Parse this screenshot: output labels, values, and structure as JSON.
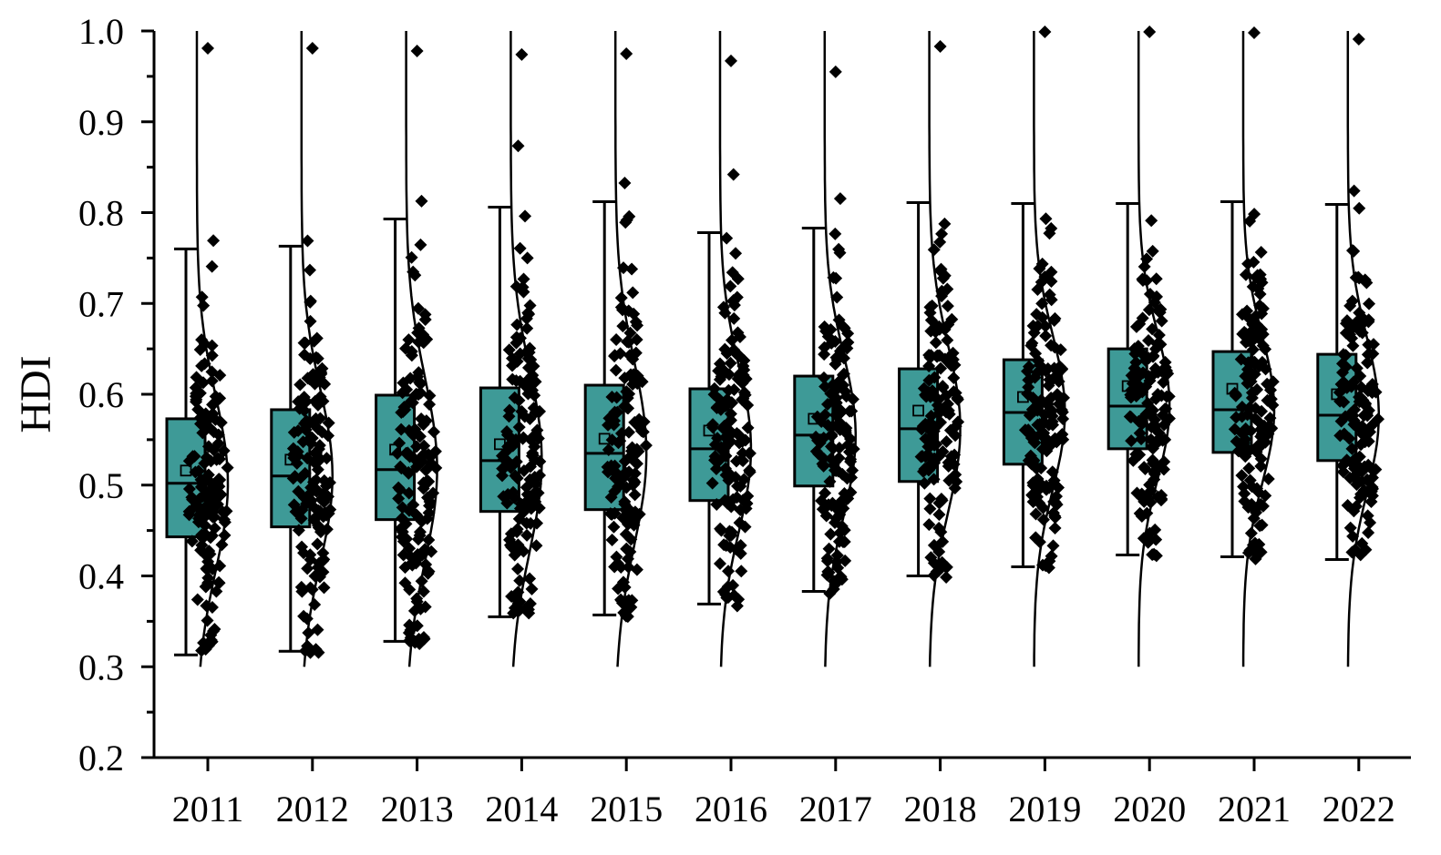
{
  "colors": {
    "box_fill": "#3E9A97",
    "stroke": "#000000",
    "background": "#ffffff"
  },
  "chart_data": {
    "type": "box",
    "ylabel": "HDI",
    "xlabel": "",
    "ylim": [
      0.2,
      1.0
    ],
    "y_ticks": [
      "0.2",
      "0.3",
      "0.4",
      "0.5",
      "0.6",
      "0.7",
      "0.8",
      "0.9",
      "1.0"
    ],
    "categories": [
      "2011",
      "2012",
      "2013",
      "2014",
      "2015",
      "2016",
      "2017",
      "2018",
      "2019",
      "2020",
      "2021",
      "2022"
    ],
    "boxes": [
      {
        "year": "2011",
        "whisker_low": 0.313,
        "q1": 0.443,
        "median": 0.502,
        "q3": 0.573,
        "whisker_high": 0.76,
        "mean": 0.516,
        "data_min": 0.31,
        "data_max": 0.981
      },
      {
        "year": "2012",
        "whisker_low": 0.317,
        "q1": 0.454,
        "median": 0.51,
        "q3": 0.583,
        "whisker_high": 0.763,
        "mean": 0.528,
        "data_min": 0.315,
        "data_max": 0.981
      },
      {
        "year": "2013",
        "whisker_low": 0.328,
        "q1": 0.462,
        "median": 0.517,
        "q3": 0.599,
        "whisker_high": 0.793,
        "mean": 0.539,
        "data_min": 0.325,
        "data_max": 0.978
      },
      {
        "year": "2014",
        "whisker_low": 0.355,
        "q1": 0.471,
        "median": 0.527,
        "q3": 0.607,
        "whisker_high": 0.806,
        "mean": 0.545,
        "data_min": 0.352,
        "data_max": 0.974
      },
      {
        "year": "2015",
        "whisker_low": 0.357,
        "q1": 0.473,
        "median": 0.535,
        "q3": 0.61,
        "whisker_high": 0.812,
        "mean": 0.551,
        "data_min": 0.355,
        "data_max": 0.975
      },
      {
        "year": "2016",
        "whisker_low": 0.369,
        "q1": 0.483,
        "median": 0.54,
        "q3": 0.606,
        "whisker_high": 0.778,
        "mean": 0.56,
        "data_min": 0.366,
        "data_max": 0.967
      },
      {
        "year": "2017",
        "whisker_low": 0.383,
        "q1": 0.499,
        "median": 0.555,
        "q3": 0.62,
        "whisker_high": 0.783,
        "mean": 0.573,
        "data_min": 0.38,
        "data_max": 0.955
      },
      {
        "year": "2018",
        "whisker_low": 0.4,
        "q1": 0.504,
        "median": 0.562,
        "q3": 0.628,
        "whisker_high": 0.811,
        "mean": 0.582,
        "data_min": 0.398,
        "data_max": 0.983
      },
      {
        "year": "2019",
        "whisker_low": 0.41,
        "q1": 0.523,
        "median": 0.58,
        "q3": 0.638,
        "whisker_high": 0.81,
        "mean": 0.597,
        "data_min": 0.408,
        "data_max": 0.999
      },
      {
        "year": "2020",
        "whisker_low": 0.423,
        "q1": 0.54,
        "median": 0.587,
        "q3": 0.65,
        "whisker_high": 0.81,
        "mean": 0.609,
        "data_min": 0.42,
        "data_max": 0.999
      },
      {
        "year": "2021",
        "whisker_low": 0.421,
        "q1": 0.536,
        "median": 0.583,
        "q3": 0.647,
        "whisker_high": 0.812,
        "mean": 0.606,
        "data_min": 0.418,
        "data_max": 0.998
      },
      {
        "year": "2022",
        "whisker_low": 0.418,
        "q1": 0.527,
        "median": 0.577,
        "q3": 0.644,
        "whisker_high": 0.809,
        "mean": 0.6,
        "data_min": 0.416,
        "data_max": 0.991
      }
    ]
  }
}
